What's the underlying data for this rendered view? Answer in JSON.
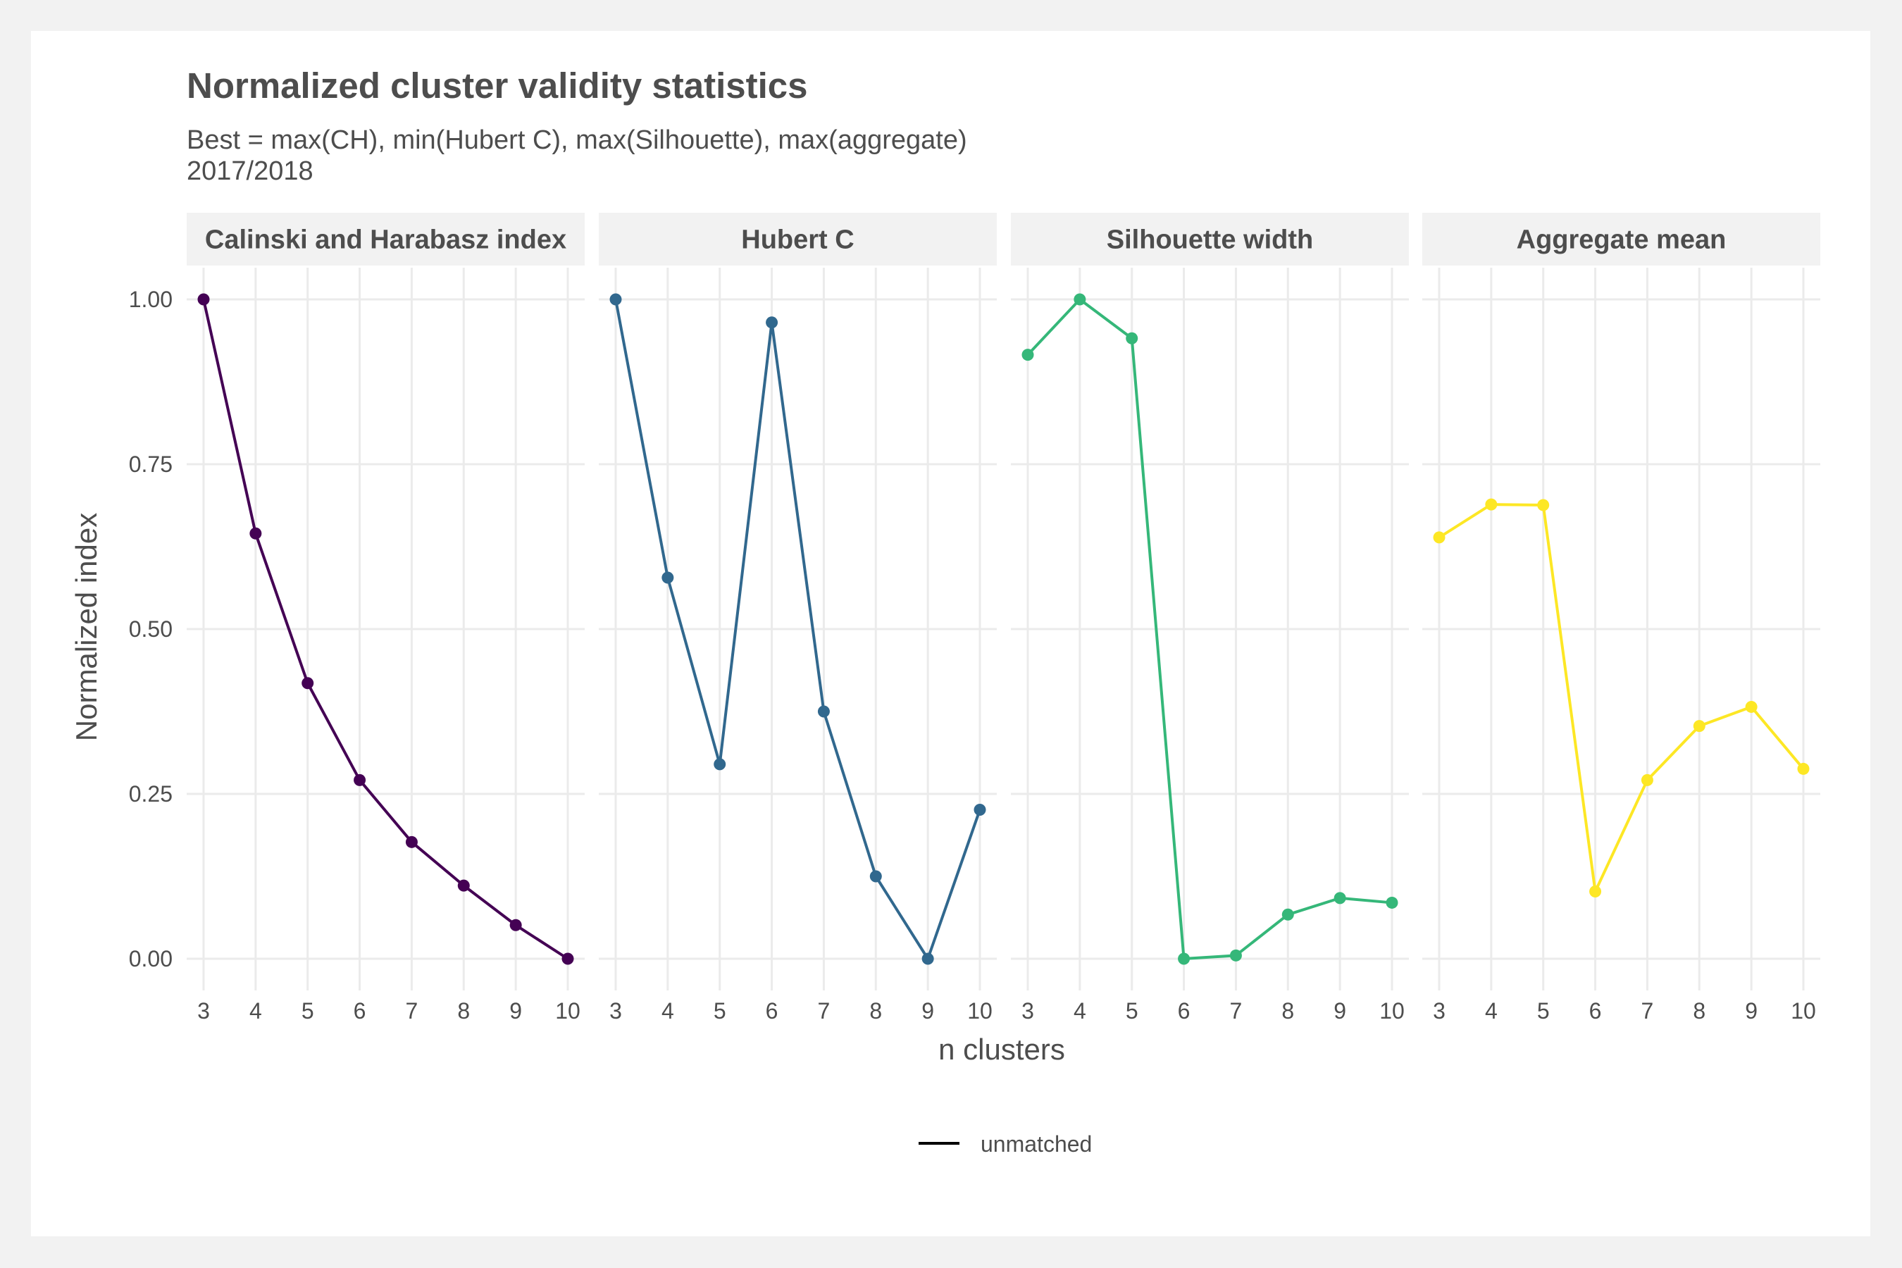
{
  "colors": {
    "page_background": "#f2f2f2",
    "plot_background": "#ffffff",
    "strip_background": "#f2f2f2",
    "grid": "#ebebeb",
    "text": "#4d4d4d"
  },
  "chart_data": {
    "type": "line",
    "title": "Normalized cluster validity statistics",
    "subtitle": "Best = max(CH), min(Hubert C), max(Silhouette), max(aggregate)",
    "subtitle2": "2017/2018",
    "xlabel": "n clusters",
    "ylabel": "Normalized index",
    "ylim": [
      0,
      1
    ],
    "yticks": [
      0.0,
      0.25,
      0.5,
      0.75,
      1.0
    ],
    "ytick_labels": [
      "0.00",
      "0.25",
      "0.50",
      "0.75",
      "1.00"
    ],
    "x": [
      3,
      4,
      5,
      6,
      7,
      8,
      9,
      10
    ],
    "grid": true,
    "legend_position": "bottom",
    "legend": [
      {
        "label": "unmatched",
        "marker": "line",
        "color": "#000000"
      }
    ],
    "panels": [
      {
        "title": "Calinski and Harabasz index",
        "color": "#440154",
        "values": [
          1.0,
          0.645,
          0.418,
          0.271,
          0.177,
          0.111,
          0.051,
          0.0
        ]
      },
      {
        "title": "Hubert C",
        "color": "#31688e",
        "values": [
          1.0,
          0.578,
          0.295,
          0.965,
          0.375,
          0.125,
          0.0,
          0.226
        ]
      },
      {
        "title": "Silhouette width",
        "color": "#35b779",
        "values": [
          0.916,
          1.0,
          0.941,
          0.0,
          0.005,
          0.067,
          0.092,
          0.085
        ]
      },
      {
        "title": "Aggregate mean",
        "color": "#fde725",
        "values": [
          0.639,
          0.689,
          0.688,
          0.102,
          0.271,
          0.353,
          0.382,
          0.288
        ]
      }
    ]
  }
}
